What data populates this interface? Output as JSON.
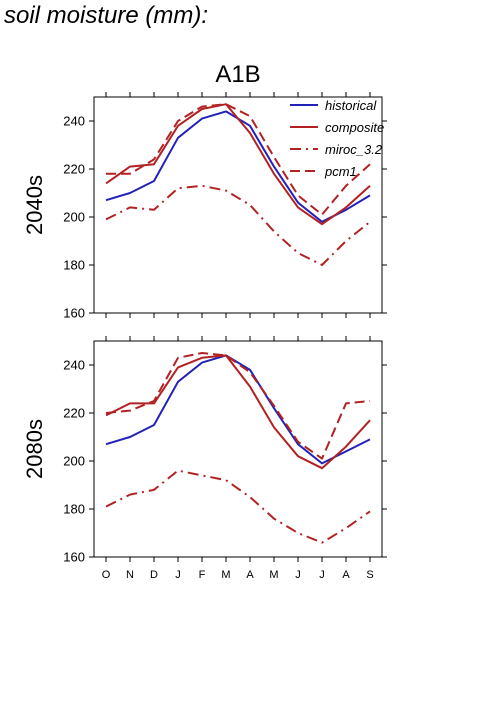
{
  "page": {
    "title": "soil moisture (mm):"
  },
  "figure": {
    "scenario": "A1B"
  },
  "legend": {
    "items": [
      {
        "label": "historical",
        "color": "#2222bb",
        "dash": "solid"
      },
      {
        "label": "composite",
        "color": "#b22222",
        "dash": "solid"
      },
      {
        "label": "miroc_3.2",
        "color": "#b22222",
        "dash": "dashdot"
      },
      {
        "label": "pcm1",
        "color": "#b22222",
        "dash": "dashed"
      }
    ]
  },
  "chart_data": [
    {
      "type": "line",
      "ylabel": "2040s",
      "categories": [
        "O",
        "N",
        "D",
        "J",
        "F",
        "M",
        "A",
        "M",
        "J",
        "J",
        "A",
        "S"
      ],
      "ylim": [
        160,
        250
      ],
      "yticks": [
        160,
        180,
        200,
        220,
        240
      ],
      "series": [
        {
          "name": "historical",
          "values": [
            207,
            210,
            215,
            233,
            241,
            244,
            238,
            221,
            206,
            198,
            203,
            209
          ]
        },
        {
          "name": "composite",
          "values": [
            214,
            221,
            222,
            238,
            245,
            247,
            235,
            218,
            204,
            197,
            204,
            213
          ]
        },
        {
          "name": "miroc_3.2",
          "values": [
            199,
            204,
            203,
            212,
            213,
            211,
            205,
            194,
            185,
            180,
            190,
            198
          ]
        },
        {
          "name": "pcm1",
          "values": [
            218,
            218,
            224,
            240,
            246,
            247,
            242,
            225,
            209,
            201,
            213,
            222
          ]
        }
      ]
    },
    {
      "type": "line",
      "ylabel": "2080s",
      "categories": [
        "O",
        "N",
        "D",
        "J",
        "F",
        "M",
        "A",
        "M",
        "J",
        "J",
        "A",
        "S"
      ],
      "ylim": [
        160,
        250
      ],
      "yticks": [
        160,
        180,
        200,
        220,
        240
      ],
      "series": [
        {
          "name": "historical",
          "values": [
            207,
            210,
            215,
            233,
            241,
            244,
            238,
            222,
            207,
            199,
            204,
            209
          ]
        },
        {
          "name": "composite",
          "values": [
            219,
            224,
            224,
            239,
            243,
            244,
            231,
            214,
            202,
            197,
            206,
            217
          ]
        },
        {
          "name": "miroc_3.2",
          "values": [
            181,
            186,
            188,
            196,
            194,
            192,
            185,
            176,
            170,
            166,
            172,
            179
          ]
        },
        {
          "name": "pcm1",
          "values": [
            220,
            221,
            225,
            243,
            245,
            244,
            237,
            223,
            208,
            201,
            224,
            225
          ]
        }
      ]
    }
  ]
}
